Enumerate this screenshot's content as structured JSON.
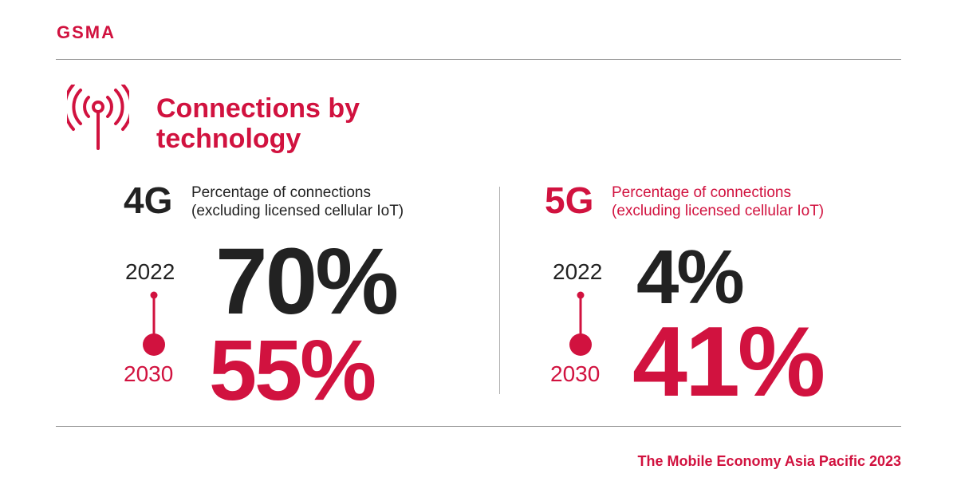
{
  "colors": {
    "accent": "#d1123f",
    "dark": "#222222",
    "rule": "#9a9a9a"
  },
  "header": {
    "logo": "GSMA"
  },
  "title": {
    "line1": "Connections by",
    "line2": "technology",
    "icon": "antenna-signal-icon"
  },
  "panels": [
    {
      "tech": "4G",
      "description_line1": "Percentage of connections",
      "description_line2": "(excluding licensed cellular IoT)",
      "year_start": "2022",
      "value_start": "70%",
      "year_end": "2030",
      "value_end": "55%"
    },
    {
      "tech": "5G",
      "description_line1": "Percentage of connections",
      "description_line2": "(excluding licensed cellular IoT)",
      "year_start": "2022",
      "value_start": "4%",
      "year_end": "2030",
      "value_end": "41%"
    }
  ],
  "footer": {
    "source": "The Mobile Economy Asia Pacific 2023"
  }
}
